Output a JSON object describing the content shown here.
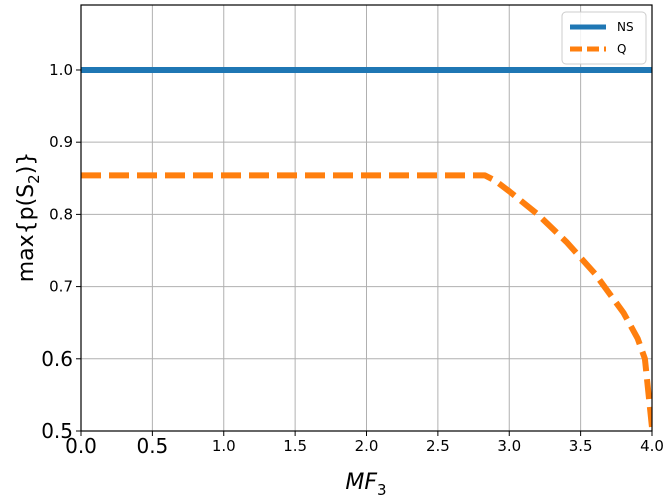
{
  "chart_data": {
    "type": "line",
    "xlabel": "MF",
    "xlabel_subscript": "3",
    "ylabel": "max{p(S",
    "ylabel_subscript": "2",
    "ylabel_suffix": ")}",
    "xlim": [
      0.0,
      4.0
    ],
    "ylim": [
      0.5,
      1.09
    ],
    "xticks": [
      {
        "value": 0.0,
        "label": "0.0",
        "large": true
      },
      {
        "value": 0.5,
        "label": "0.5",
        "large": true
      },
      {
        "value": 1.0,
        "label": "1.0",
        "large": false
      },
      {
        "value": 1.5,
        "label": "1.5",
        "large": false
      },
      {
        "value": 2.0,
        "label": "2.0",
        "large": false
      },
      {
        "value": 2.5,
        "label": "2.5",
        "large": false
      },
      {
        "value": 3.0,
        "label": "3.0",
        "large": false
      },
      {
        "value": 3.5,
        "label": "3.5",
        "large": false
      },
      {
        "value": 4.0,
        "label": "4.0",
        "large": false
      }
    ],
    "yticks": [
      {
        "value": 0.5,
        "label": "0.5",
        "large": true
      },
      {
        "value": 0.6,
        "label": "0.6",
        "large": true
      },
      {
        "value": 0.7,
        "label": "0.7",
        "large": false
      },
      {
        "value": 0.8,
        "label": "0.8",
        "large": false
      },
      {
        "value": 0.9,
        "label": "0.9",
        "large": false
      },
      {
        "value": 1.0,
        "label": "1.0",
        "large": false
      }
    ],
    "grid": true,
    "legend_position": "top-right",
    "series": [
      {
        "name": "NS",
        "color": "#1f77b4",
        "style": "solid",
        "x": [
          0.0,
          4.0
        ],
        "y": [
          1.0,
          1.0
        ]
      },
      {
        "name": "Q",
        "color": "#ff7f0e",
        "style": "dashed",
        "x": [
          0.0,
          0.5,
          1.0,
          1.5,
          2.0,
          2.5,
          2.83,
          2.9,
          3.0,
          3.2,
          3.4,
          3.6,
          3.8,
          3.9,
          3.95,
          4.0
        ],
        "y": [
          0.854,
          0.854,
          0.854,
          0.854,
          0.854,
          0.854,
          0.854,
          0.847,
          0.832,
          0.8,
          0.762,
          0.718,
          0.664,
          0.628,
          0.6,
          0.505
        ]
      }
    ]
  }
}
